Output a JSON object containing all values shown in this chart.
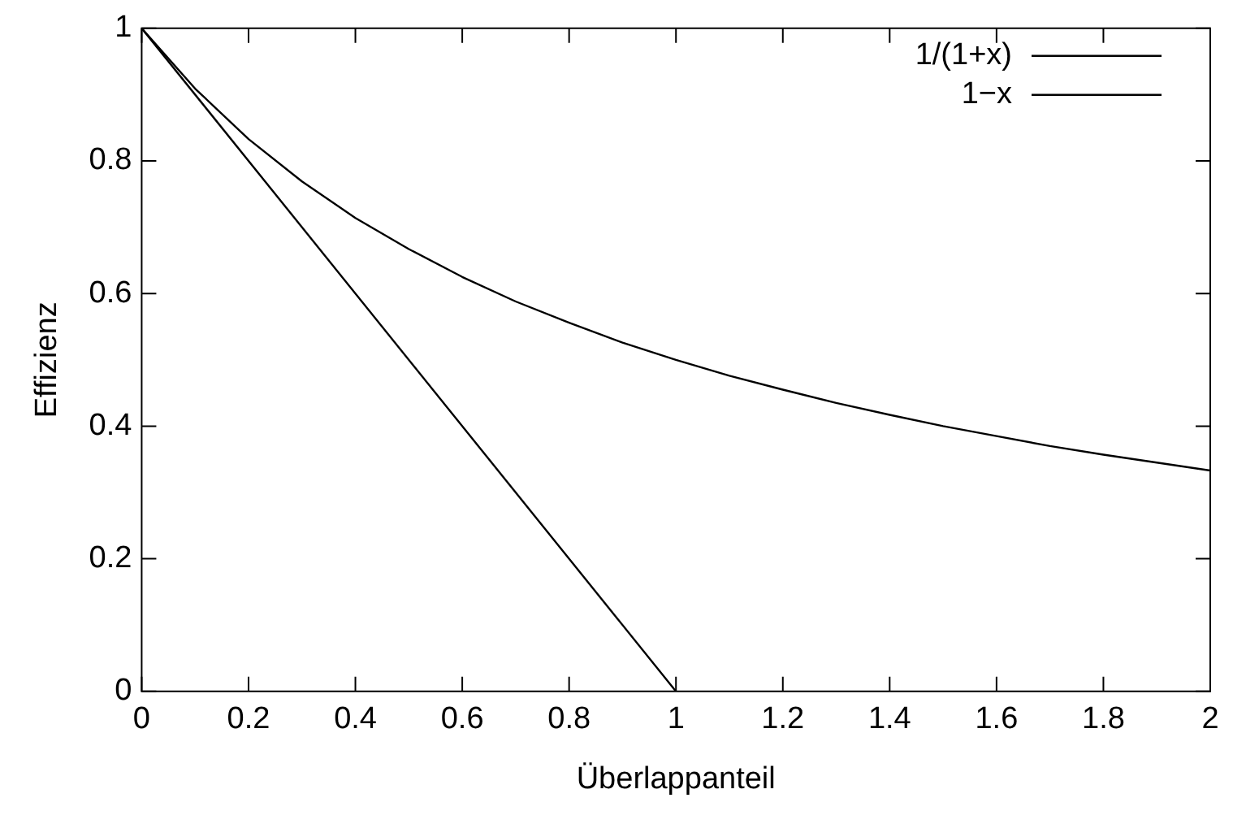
{
  "chart_data": {
    "type": "line",
    "xlabel": "Überlappanteil",
    "ylabel": "Effizienz",
    "xlim": [
      0,
      2
    ],
    "ylim": [
      0,
      1
    ],
    "xticks": [
      0,
      0.2,
      0.4,
      0.6,
      0.8,
      1,
      1.2,
      1.4,
      1.6,
      1.8,
      2
    ],
    "yticks": [
      0,
      0.2,
      0.4,
      0.6,
      0.8,
      1
    ],
    "grid": false,
    "legend": "top right",
    "marker": "none",
    "line_style": "solid",
    "series": [
      {
        "name": "1/(1+x)",
        "color": "#000000",
        "x": [
          0,
          0.1,
          0.2,
          0.3,
          0.4,
          0.5,
          0.6,
          0.7,
          0.8,
          0.9,
          1,
          1.1,
          1.2,
          1.3,
          1.4,
          1.5,
          1.6,
          1.7,
          1.8,
          1.9,
          2
        ],
        "values": [
          1,
          0.909,
          0.833,
          0.769,
          0.714,
          0.667,
          0.625,
          0.588,
          0.556,
          0.526,
          0.5,
          0.476,
          0.455,
          0.435,
          0.417,
          0.4,
          0.385,
          0.37,
          0.357,
          0.345,
          0.333
        ]
      },
      {
        "name": "1−x",
        "color": "#000000",
        "x": [
          0,
          1
        ],
        "values": [
          1,
          0
        ]
      }
    ]
  }
}
